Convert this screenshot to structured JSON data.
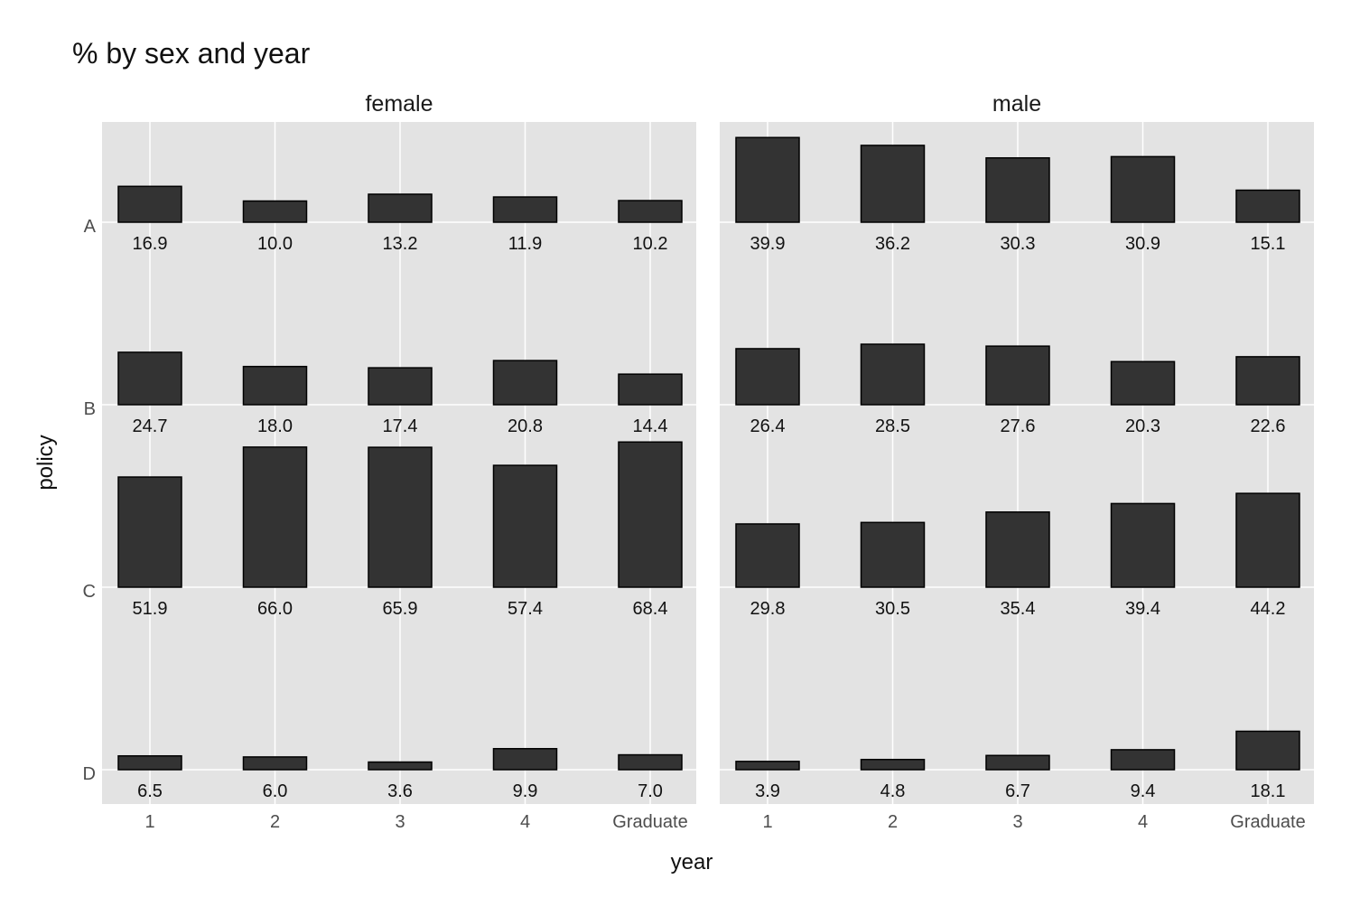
{
  "chart_data": {
    "type": "bar",
    "title": "% by sex and year",
    "xlabel": "year",
    "ylabel": "policy",
    "categories": [
      "1",
      "2",
      "3",
      "4",
      "Graduate"
    ],
    "rows": [
      "A",
      "B",
      "C",
      "D"
    ],
    "grid": true,
    "legend": "none",
    "panels": [
      {
        "name": "female",
        "series": [
          {
            "name": "A",
            "values": [
              16.9,
              10.0,
              13.2,
              11.9,
              10.2
            ],
            "labels": [
              "16.9",
              "10.0",
              "13.2",
              "11.9",
              "10.2"
            ]
          },
          {
            "name": "B",
            "values": [
              24.7,
              18.0,
              17.4,
              20.8,
              14.4
            ],
            "labels": [
              "24.7",
              "18.0",
              "17.4",
              "20.8",
              "14.4"
            ]
          },
          {
            "name": "C",
            "values": [
              51.9,
              66.0,
              65.9,
              57.4,
              68.4
            ],
            "labels": [
              "51.9",
              "66.0",
              "65.9",
              "57.4",
              "68.4"
            ]
          },
          {
            "name": "D",
            "values": [
              6.5,
              6.0,
              3.6,
              9.9,
              7.0
            ],
            "labels": [
              "6.5",
              "6.0",
              "3.6",
              "9.9",
              "7.0"
            ]
          }
        ]
      },
      {
        "name": "male",
        "series": [
          {
            "name": "A",
            "values": [
              39.9,
              36.2,
              30.3,
              30.9,
              15.1
            ],
            "labels": [
              "39.9",
              "36.2",
              "30.3",
              "30.9",
              "15.1"
            ]
          },
          {
            "name": "B",
            "values": [
              26.4,
              28.5,
              27.6,
              20.3,
              22.6
            ],
            "labels": [
              "26.4",
              "28.5",
              "27.6",
              "20.3",
              "22.6"
            ]
          },
          {
            "name": "C",
            "values": [
              29.8,
              30.5,
              35.4,
              39.4,
              44.2
            ],
            "labels": [
              "29.8",
              "30.5",
              "35.4",
              "39.4",
              "44.2"
            ]
          },
          {
            "name": "D",
            "values": [
              3.9,
              4.8,
              6.7,
              9.4,
              18.1
            ],
            "labels": [
              "3.9",
              "4.8",
              "6.7",
              "9.4",
              "18.1"
            ]
          }
        ]
      }
    ],
    "colors": {
      "bar_fill": "#333333",
      "bar_stroke": "#000000",
      "panel_bg": "#e3e3e3",
      "grid": "#ffffff"
    }
  }
}
